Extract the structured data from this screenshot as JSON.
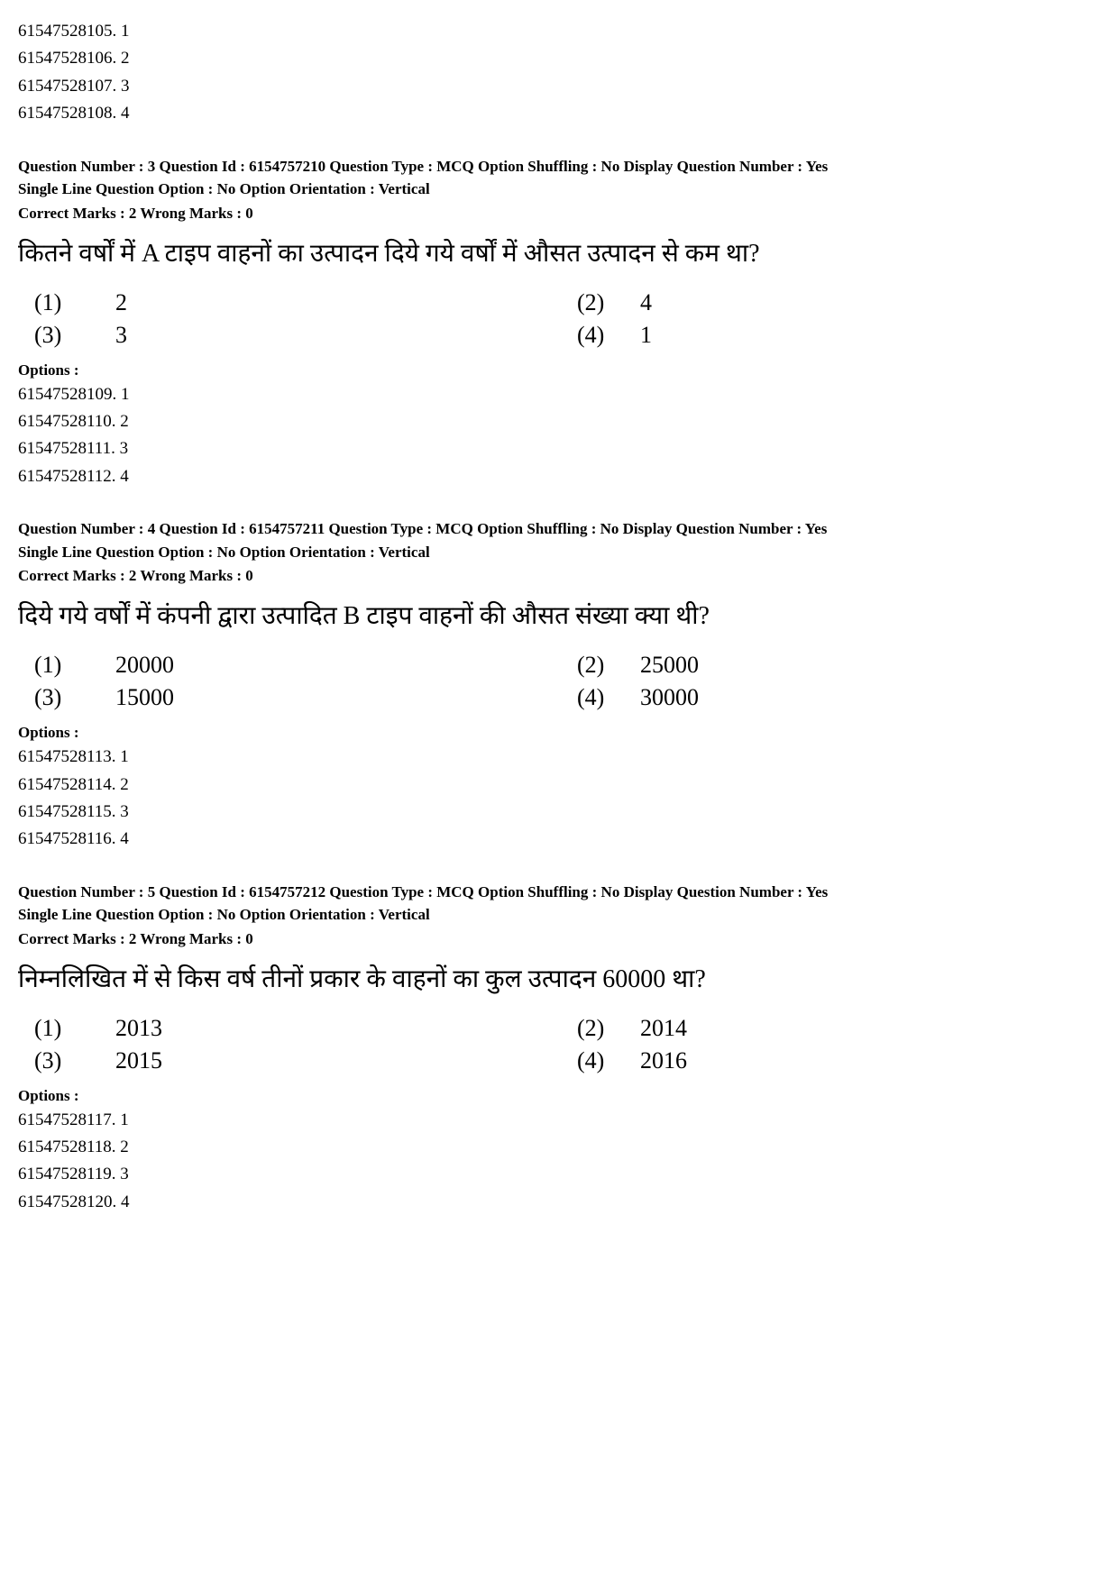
{
  "top_options": [
    "61547528105. 1",
    "61547528106. 2",
    "61547528107. 3",
    "61547528108. 4"
  ],
  "questions": [
    {
      "header_line1": "Question Number : 3  Question Id : 6154757210  Question Type : MCQ  Option Shuffling : No  Display Question Number : Yes",
      "header_line2": "Single Line Question Option : No  Option Orientation : Vertical",
      "marks": "Correct Marks : 2  Wrong Marks : 0",
      "text": "कितने वर्षों में A टाइप वाहनों का उत्पादन दिये गये वर्षों में औसत उत्पादन से कम था?",
      "choices": [
        {
          "ln": "(1)",
          "lv": "2",
          "rn": "(2)",
          "rv": "4"
        },
        {
          "ln": "(3)",
          "lv": "3",
          "rn": "(4)",
          "rv": "1"
        }
      ],
      "opts_label": "Options :",
      "options": [
        "61547528109. 1",
        "61547528110. 2",
        "61547528111. 3",
        "61547528112. 4"
      ]
    },
    {
      "header_line1": "Question Number : 4  Question Id : 6154757211  Question Type : MCQ  Option Shuffling : No  Display Question Number : Yes",
      "header_line2": "Single Line Question Option : No  Option Orientation : Vertical",
      "marks": "Correct Marks : 2  Wrong Marks : 0",
      "text": "दिये गये वर्षों में कंपनी द्वारा उत्पादित B टाइप वाहनों की औसत संख्या क्या थी?",
      "choices": [
        {
          "ln": "(1)",
          "lv": "20000",
          "rn": "(2)",
          "rv": "25000"
        },
        {
          "ln": "(3)",
          "lv": "15000",
          "rn": "(4)",
          "rv": "30000"
        }
      ],
      "opts_label": "Options :",
      "options": [
        "61547528113. 1",
        "61547528114. 2",
        "61547528115. 3",
        "61547528116. 4"
      ]
    },
    {
      "header_line1": "Question Number : 5  Question Id : 6154757212  Question Type : MCQ  Option Shuffling : No  Display Question Number : Yes",
      "header_line2": "Single Line Question Option : No  Option Orientation : Vertical",
      "marks": "Correct Marks : 2  Wrong Marks : 0",
      "text": "निम्नलिखित में से किस वर्ष तीनों प्रकार के वाहनों का कुल उत्पादन 60000 था?",
      "choices": [
        {
          "ln": "(1)",
          "lv": "2013",
          "rn": "(2)",
          "rv": "2014"
        },
        {
          "ln": "(3)",
          "lv": "2015",
          "rn": "(4)",
          "rv": "2016"
        }
      ],
      "opts_label": "Options :",
      "options": [
        "61547528117. 1",
        "61547528118. 2",
        "61547528119. 3",
        "61547528120. 4"
      ]
    }
  ]
}
